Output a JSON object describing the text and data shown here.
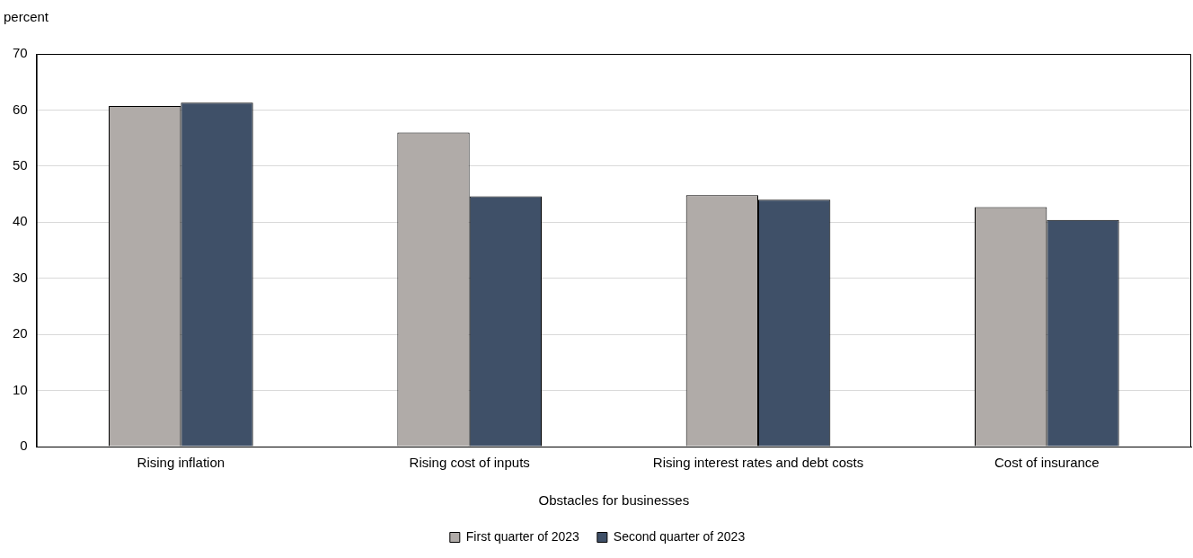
{
  "chart_data": {
    "type": "bar",
    "xlabel": "Obstacles for businesses",
    "ylabel": "percent",
    "categories": [
      "Rising inflation",
      "Rising cost of inputs",
      "Rising interest rates and debt costs",
      "Cost of insurance"
    ],
    "series": [
      {
        "name": "First quarter of 2023",
        "color": "#b0aba8",
        "values": [
          60.7,
          56.0,
          44.8,
          42.7
        ]
      },
      {
        "name": "Second quarter of 2023",
        "color": "#3f5068",
        "values": [
          61.3,
          44.6,
          44.0,
          40.4
        ]
      }
    ],
    "ylim": [
      0,
      70
    ],
    "yticks": [
      0,
      10,
      20,
      30,
      40,
      50,
      60,
      70
    ],
    "grid": "y",
    "legend": "bottom"
  }
}
